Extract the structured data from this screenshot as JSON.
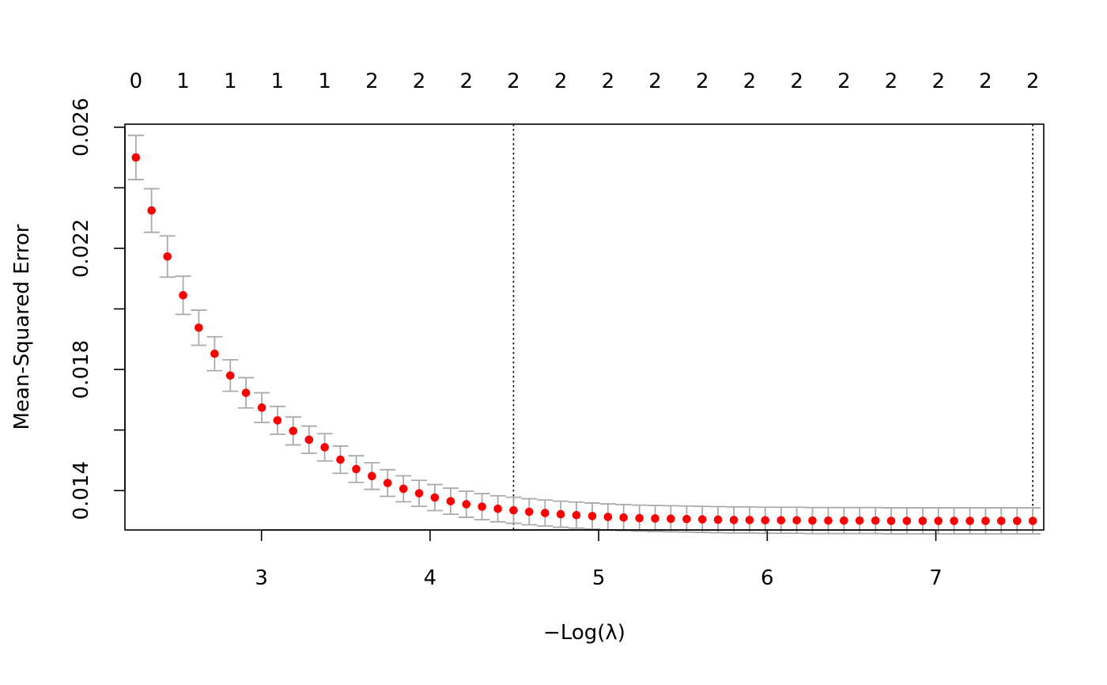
{
  "chart_data": {
    "type": "scatter",
    "title": "",
    "xlabel": "−Log(λ)",
    "ylabel": "Mean-Squared Error",
    "xlim": [
      2.19,
      7.64
    ],
    "ylim": [
      0.0127,
      0.0261
    ],
    "x_ticks": [
      3,
      4,
      5,
      6,
      7
    ],
    "y_ticks": [
      0.014,
      0.018,
      0.022,
      0.026
    ],
    "y_minor_ticks": [
      0.016,
      0.02,
      0.024
    ],
    "y_tick_labels": [
      "0.014",
      "0.018",
      "0.022",
      "0.026"
    ],
    "grid": false,
    "legend": "none",
    "top_axis": {
      "x": [
        2.255,
        2.535,
        2.815,
        3.095,
        3.375,
        3.655,
        3.935,
        4.215,
        4.495,
        4.775,
        5.055,
        5.335,
        5.615,
        5.895,
        6.175,
        6.455,
        6.735,
        7.015,
        7.295,
        7.575
      ],
      "labels": [
        "0",
        "1",
        "1",
        "1",
        "1",
        "2",
        "2",
        "2",
        "2",
        "2",
        "2",
        "2",
        "2",
        "2",
        "2",
        "2",
        "2",
        "2",
        "2",
        "2"
      ]
    },
    "vlines": [
      4.495,
      7.575
    ],
    "series": [
      {
        "x": [
          2.255,
          2.348,
          2.442,
          2.535,
          2.628,
          2.722,
          2.815,
          2.908,
          3.002,
          3.095,
          3.188,
          3.282,
          3.375,
          3.468,
          3.562,
          3.655,
          3.748,
          3.842,
          3.935,
          4.028,
          4.122,
          4.215,
          4.308,
          4.402,
          4.495,
          4.588,
          4.682,
          4.775,
          4.868,
          4.962,
          5.055,
          5.148,
          5.242,
          5.335,
          5.428,
          5.522,
          5.615,
          5.708,
          5.802,
          5.895,
          5.988,
          6.082,
          6.175,
          6.268,
          6.362,
          6.455,
          6.548,
          6.642,
          6.735,
          6.828,
          6.922,
          7.015,
          7.108,
          7.202,
          7.295,
          7.388,
          7.482,
          7.575
        ],
        "y": [
          0.025,
          0.02325,
          0.02173,
          0.02045,
          0.01938,
          0.01852,
          0.0178,
          0.01723,
          0.01674,
          0.01632,
          0.01597,
          0.01568,
          0.01543,
          0.01502,
          0.01471,
          0.01448,
          0.01425,
          0.01406,
          0.01391,
          0.01377,
          0.01365,
          0.01355,
          0.01347,
          0.0134,
          0.01335,
          0.0133,
          0.01326,
          0.01322,
          0.01319,
          0.01316,
          0.01313,
          0.01311,
          0.01309,
          0.01308,
          0.01307,
          0.01306,
          0.01305,
          0.01304,
          0.01303,
          0.01303,
          0.01302,
          0.01302,
          0.01302,
          0.01301,
          0.01301,
          0.01301,
          0.01301,
          0.01301,
          0.013,
          0.013,
          0.013,
          0.013,
          0.013,
          0.013,
          0.013,
          0.013,
          0.013,
          0.013
        ],
        "err": [
          0.00073,
          0.00072,
          0.00068,
          0.00063,
          0.00058,
          0.00056,
          0.00052,
          0.0005,
          0.00049,
          0.00046,
          0.00046,
          0.00045,
          0.00045,
          0.00045,
          0.00044,
          0.00044,
          0.00044,
          0.00043,
          0.00043,
          0.00043,
          0.00043,
          0.00043,
          0.00043,
          0.00043,
          0.00043,
          0.00043,
          0.00043,
          0.00043,
          0.00043,
          0.00043,
          0.00043,
          0.00043,
          0.00043,
          0.00043,
          0.00043,
          0.00043,
          0.00043,
          0.00043,
          0.00043,
          0.00043,
          0.00043,
          0.00043,
          0.00043,
          0.00043,
          0.00043,
          0.00043,
          0.00043,
          0.00043,
          0.00043,
          0.00043,
          0.00043,
          0.00043,
          0.00043,
          0.00043,
          0.00043,
          0.00043,
          0.00043,
          0.00043
        ],
        "color": "#ff0000",
        "error_bar_color": "#aaaaaa"
      }
    ]
  }
}
